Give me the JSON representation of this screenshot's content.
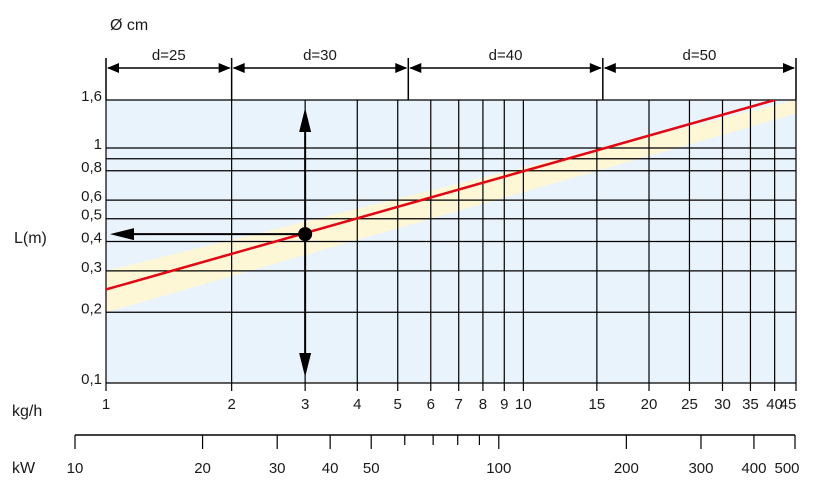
{
  "chart_data": {
    "type": "line",
    "title": "",
    "diameter_axis": {
      "label": "Ø cm",
      "segments": [
        {
          "label": "d=25",
          "from_kgh": 1,
          "to_kgh": 2
        },
        {
          "label": "d=30",
          "from_kgh": 2,
          "to_kgh": 5.3
        },
        {
          "label": "d=40",
          "from_kgh": 5.3,
          "to_kgh": 15.5
        },
        {
          "label": "d=50",
          "from_kgh": 15.5,
          "to_kgh": 45
        }
      ]
    },
    "y_axis": {
      "label": "L(m)",
      "scale": "log",
      "range": [
        0.1,
        1.6
      ],
      "ticks": [
        {
          "value": 0.1,
          "label": "0,1"
        },
        {
          "value": 0.2,
          "label": "0,2"
        },
        {
          "value": 0.3,
          "label": "0,3"
        },
        {
          "value": 0.4,
          "label": "0,4"
        },
        {
          "value": 0.5,
          "label": "0,5"
        },
        {
          "value": 0.6,
          "label": "0,6"
        },
        {
          "value": 0.8,
          "label": "0,8"
        },
        {
          "value": 0.9,
          "label": ""
        },
        {
          "value": 1.0,
          "label": "1"
        },
        {
          "value": 1.6,
          "label": "1,6"
        }
      ]
    },
    "x_axis_kgh": {
      "label": "kg/h",
      "scale": "log",
      "range": [
        1,
        45
      ],
      "ticks": [
        {
          "value": 1,
          "label": "1"
        },
        {
          "value": 2,
          "label": "2"
        },
        {
          "value": 3,
          "label": "3"
        },
        {
          "value": 4,
          "label": "4"
        },
        {
          "value": 5,
          "label": "5"
        },
        {
          "value": 6,
          "label": "6"
        },
        {
          "value": 7,
          "label": "7"
        },
        {
          "value": 8,
          "label": "8"
        },
        {
          "value": 9,
          "label": "9"
        },
        {
          "value": 10,
          "label": "10"
        },
        {
          "value": 15,
          "label": "15"
        },
        {
          "value": 20,
          "label": "20"
        },
        {
          "value": 25,
          "label": "25"
        },
        {
          "value": 30,
          "label": "30"
        },
        {
          "value": 35,
          "label": "35"
        },
        {
          "value": 40,
          "label": "40"
        },
        {
          "value": 45,
          "label": "45"
        }
      ]
    },
    "x_axis_kw": {
      "label": "kW",
      "scale": "log",
      "ticks": [
        {
          "value": 10,
          "label": "10"
        },
        {
          "value": 20,
          "label": "20"
        },
        {
          "value": 30,
          "label": "30"
        },
        {
          "value": 40,
          "label": "40"
        },
        {
          "value": 50,
          "label": "50"
        },
        {
          "value": 60,
          "label": ""
        },
        {
          "value": 70,
          "label": ""
        },
        {
          "value": 80,
          "label": ""
        },
        {
          "value": 90,
          "label": ""
        },
        {
          "value": 100,
          "label": "100"
        },
        {
          "value": 200,
          "label": "200"
        },
        {
          "value": 300,
          "label": "300"
        },
        {
          "value": 400,
          "label": "400"
        },
        {
          "value": 500,
          "label": "500"
        }
      ]
    },
    "series": [
      {
        "x_kgh": [
          1,
          40
        ],
        "y": [
          0.25,
          1.6
        ]
      }
    ],
    "tolerance_band": {
      "upper": [
        [
          1,
          0.3
        ],
        [
          45,
          1.6
        ]
      ],
      "lower": [
        [
          1,
          0.2
        ],
        [
          45,
          1.4
        ]
      ]
    },
    "example_point": {
      "x_kgh": 3,
      "y": 0.43
    },
    "grid": true,
    "colors": {
      "plot_background": "#e9f3fb",
      "band": "#fdf7d6",
      "line": "#e30613",
      "grid": "#000000"
    }
  }
}
